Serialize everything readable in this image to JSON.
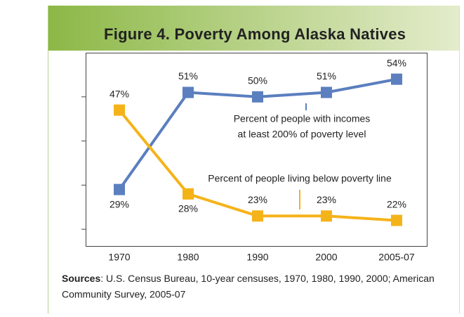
{
  "chart_data": {
    "type": "line",
    "title": "Figure 4. Poverty Among Alaska  Natives",
    "categories": [
      "1970",
      "1980",
      "1990",
      "2000",
      "2005-07"
    ],
    "series": [
      {
        "name": "Percent of people with incomes at least 200% of poverty level",
        "color": "#5b7fbf",
        "values": [
          29,
          51,
          50,
          51,
          54
        ],
        "value_labels": [
          "29%",
          "51%",
          "50%",
          "51%",
          "54%"
        ]
      },
      {
        "name": "Percent of people living below poverty line",
        "color": "#f5b31a",
        "values": [
          47,
          28,
          23,
          23,
          22
        ],
        "value_labels": [
          "47%",
          "28%",
          "23%",
          "23%",
          "22%"
        ]
      }
    ],
    "annotations": [
      "Percent of people with incomes",
      "at least 200% of poverty level",
      "Percent of people living below poverty line"
    ],
    "ylim": [
      16.2,
      60
    ],
    "yticks": [
      20,
      30,
      40,
      50
    ],
    "sources_label": "Sources",
    "sources_lines": [
      ": U.S. Census Bureau, 10-year censuses, 1970, 1980, 1990, 2000; American",
      "Community Survey, 2005-07"
    ]
  }
}
